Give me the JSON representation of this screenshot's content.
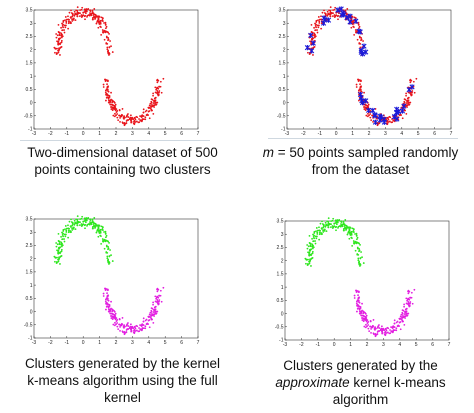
{
  "panels": [
    {
      "id": "p1",
      "caption_lines": [
        "Two-dimensional dataset of 500",
        "points containing two clusters"
      ],
      "colors": {
        "upper": "#e8141b",
        "lower": "#e8141b"
      }
    },
    {
      "id": "p2",
      "caption_line1_italic": "m",
      "caption_line1_rest": " = 50 points sampled randomly",
      "caption_line2": "from the dataset",
      "colors": {
        "upper": "#e8141b",
        "lower": "#e8141b",
        "sample": "#1a1ad8"
      }
    },
    {
      "id": "p3",
      "caption_lines": [
        "Clusters generated by the kernel",
        "k-means algorithm using the full",
        "kernel"
      ],
      "colors": {
        "upper": "#2ee61e",
        "lower": "#e21ee0"
      }
    },
    {
      "id": "p4",
      "caption_line1": "Clusters generated by the",
      "caption_line2_italic": "approximate",
      "caption_line2_rest": " kernel k-means",
      "caption_line3": "algorithm",
      "colors": {
        "upper": "#2ee61e",
        "lower": "#e21ee0"
      }
    }
  ],
  "chart_data": {
    "type": "scatter",
    "xlim": [
      -3,
      7
    ],
    "ylim": [
      -1,
      3.5
    ],
    "x_ticks": [
      "-3",
      "-2",
      "-1",
      "0",
      "1",
      "2",
      "3",
      "4",
      "5",
      "6",
      "7"
    ],
    "y_ticks": [
      "-1",
      "-0.5",
      "0",
      "0.5",
      "1",
      "1.5",
      "2",
      "2.5",
      "3",
      "3.5"
    ],
    "grid": false,
    "series": [
      {
        "center": [
          0,
          1.8
        ],
        "radius": 1.6,
        "angle_range_deg": [
          0,
          180
        ],
        "count": 250,
        "noise": 0.14
      },
      {
        "center": [
          3,
          0.9
        ],
        "radius": 1.6,
        "angle_range_deg": [
          180,
          360
        ],
        "count": 250,
        "noise": 0.14
      }
    ],
    "sample_count": 50
  }
}
